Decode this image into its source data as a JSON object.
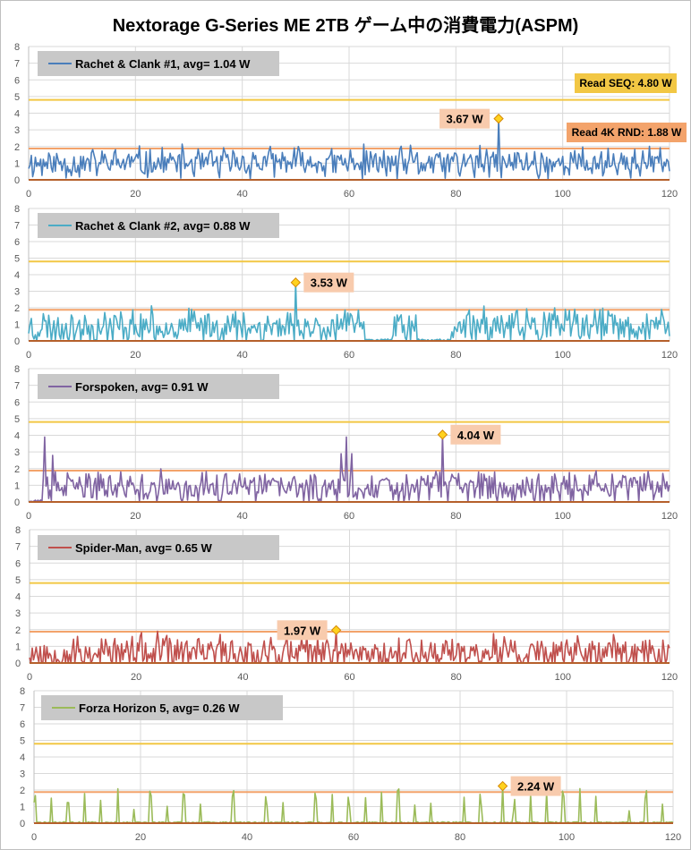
{
  "title": "Nextorage G-Series ME 2TB ゲーム中の消費電力(ASPM)",
  "chart_data": [
    {
      "type": "line",
      "series_name": "Rachet & Clank #1",
      "avg_label": "avg=  1.04 W",
      "color": "#4a7ebb",
      "xlim": [
        0,
        120
      ],
      "ylim": [
        0,
        8
      ],
      "x_ticks": [
        0,
        20,
        40,
        60,
        80,
        100,
        120
      ],
      "y_ticks": [
        0,
        1,
        2,
        3,
        4,
        5,
        6,
        7,
        8
      ],
      "reference_lines": [
        {
          "label": "Read SEQ:  4.80 W",
          "value": 4.8,
          "color": "#f2c744"
        },
        {
          "label": "Read 4K RND:  1.88 W",
          "value": 1.88,
          "color": "#f3a36b"
        }
      ],
      "peak": {
        "x": 88,
        "y": 3.67,
        "label": "3.67 W"
      },
      "profile": {
        "base": 1.0,
        "amp": 0.8,
        "min": 0.05,
        "max": 2.5,
        "seed": 11,
        "zero_runs": []
      }
    },
    {
      "type": "line",
      "series_name": "Rachet & Clank #2",
      "avg_label": "avg=  0.88 W",
      "color": "#4bacc6",
      "xlim": [
        0,
        120
      ],
      "ylim": [
        0,
        8
      ],
      "x_ticks": [
        0,
        20,
        40,
        60,
        80,
        100,
        120
      ],
      "y_ticks": [
        0,
        1,
        2,
        3,
        4,
        5,
        6,
        7,
        8
      ],
      "reference_lines": [
        {
          "label": "",
          "value": 4.8,
          "color": "#f2c744"
        },
        {
          "label": "",
          "value": 1.88,
          "color": "#f3a36b"
        }
      ],
      "peak": {
        "x": 50,
        "y": 3.53,
        "label": "3.53 W"
      },
      "profile": {
        "base": 0.85,
        "amp": 0.9,
        "min": 0.0,
        "max": 2.6,
        "seed": 23,
        "zero_runs": [
          [
            63,
            68
          ],
          [
            73,
            79
          ]
        ]
      }
    },
    {
      "type": "line",
      "series_name": "Forspoken",
      "avg_label": "avg=  0.91 W",
      "color": "#8064a2",
      "xlim": [
        0,
        120
      ],
      "ylim": [
        0,
        8
      ],
      "x_ticks": [
        0,
        20,
        40,
        60,
        80,
        100,
        120
      ],
      "y_ticks": [
        0,
        1,
        2,
        3,
        4,
        5,
        6,
        7,
        8
      ],
      "reference_lines": [
        {
          "label": "",
          "value": 4.8,
          "color": "#f2c744"
        },
        {
          "label": "",
          "value": 1.88,
          "color": "#f3a36b"
        }
      ],
      "peak": {
        "x": 77.5,
        "y": 4.04,
        "label": "4.04 W"
      },
      "profile": {
        "base": 0.85,
        "amp": 0.8,
        "min": 0.0,
        "max": 2.4,
        "seed": 37,
        "zero_runs": [
          [
            0,
            2.5
          ]
        ],
        "spikes": [
          [
            3,
            3.9
          ],
          [
            4.5,
            2.8
          ],
          [
            59.5,
            3.9
          ],
          [
            58.5,
            2.9
          ],
          [
            60.5,
            2.9
          ]
        ]
      }
    },
    {
      "type": "line",
      "series_name": "Spider-Man",
      "avg_label": "avg=  0.65 W",
      "color": "#c0504d",
      "xlim": [
        0,
        120
      ],
      "ylim": [
        0,
        8
      ],
      "x_ticks": [
        0,
        20,
        40,
        60,
        80,
        100,
        120
      ],
      "y_ticks": [
        0,
        1,
        2,
        3,
        4,
        5,
        6,
        7,
        8
      ],
      "reference_lines": [
        {
          "label": "",
          "value": 4.8,
          "color": "#f2c744"
        },
        {
          "label": "",
          "value": 1.88,
          "color": "#f3a36b"
        }
      ],
      "peak": {
        "x": 57.5,
        "y": 1.97,
        "label": "1.97 W"
      },
      "profile": {
        "base": 0.6,
        "amp": 0.95,
        "min": 0.0,
        "max": 1.9,
        "seed": 53,
        "zero_runs": []
      }
    },
    {
      "type": "line",
      "series_name": "Forza Horizon 5",
      "avg_label": "avg=  0.26 W",
      "color": "#9bbb59",
      "xlim": [
        0,
        120
      ],
      "ylim": [
        0,
        8
      ],
      "x_ticks": [
        0,
        20,
        40,
        60,
        80,
        100,
        120
      ],
      "y_ticks": [
        0,
        1,
        2,
        3,
        4,
        5,
        6,
        7,
        8
      ],
      "reference_lines": [
        {
          "label": "",
          "value": 4.8,
          "color": "#f2c744"
        },
        {
          "label": "",
          "value": 1.88,
          "color": "#f3a36b"
        }
      ],
      "peak": {
        "x": 88,
        "y": 2.24,
        "label": "2.24 W"
      },
      "profile": {
        "base": 0.05,
        "amp": 0.08,
        "min": 0.0,
        "max": 2.1,
        "seed": 71,
        "zero_runs": [],
        "pulse_period": 3.1,
        "pulse_height": [
          0.6,
          2.1
        ]
      }
    }
  ]
}
